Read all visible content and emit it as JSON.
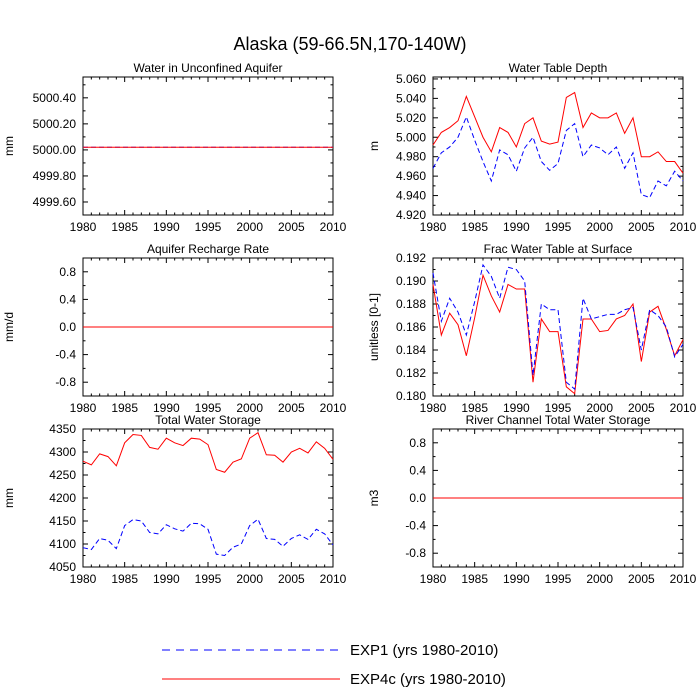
{
  "figure_title": "Alaska (59-66.5N,170-140W)",
  "colors": {
    "exp1": "#0000ff",
    "exp4c": "#ff0000",
    "axis": "#000000"
  },
  "legend": {
    "entries": [
      {
        "label": "EXP1 (yrs 1980-2010)",
        "series": "exp1"
      },
      {
        "label": "EXP4c (yrs 1980-2010)",
        "series": "exp4c"
      }
    ]
  },
  "chart_data": [
    {
      "type": "line",
      "title": "Water in Unconfined Aquifer",
      "ylabel": "mm",
      "xlim": [
        1980,
        2010
      ],
      "ylim": [
        4999.5,
        5000.56
      ],
      "x_ticks": [
        "1980",
        "1985",
        "1990",
        "1995",
        "2000",
        "2005",
        "2010"
      ],
      "y_ticks": [
        {
          "v": 4999.6,
          "label": "4999.60"
        },
        {
          "v": 4999.8,
          "label": "4999.80"
        },
        {
          "v": 5000.0,
          "label": "5000.00"
        },
        {
          "v": 5000.2,
          "label": "5000.20"
        },
        {
          "v": 5000.4,
          "label": "5000.40"
        }
      ],
      "series": [
        {
          "name": "EXP1",
          "key": "exp1",
          "values": [
            5000.02,
            5000.02
          ]
        },
        {
          "name": "EXP4c",
          "key": "exp4c",
          "values": [
            5000.02,
            5000.02
          ]
        }
      ],
      "x": [
        1980,
        2010
      ]
    },
    {
      "type": "line",
      "title": "Water Table Depth",
      "ylabel": "m",
      "xlim": [
        1980,
        2010
      ],
      "ylim": [
        4.92,
        5.062
      ],
      "x_ticks": [
        "1980",
        "1985",
        "1990",
        "1995",
        "2000",
        "2005",
        "2010"
      ],
      "y_ticks": [
        {
          "v": 4.92,
          "label": "4.920"
        },
        {
          "v": 4.94,
          "label": "4.940"
        },
        {
          "v": 4.96,
          "label": "4.960"
        },
        {
          "v": 4.98,
          "label": "4.980"
        },
        {
          "v": 5.0,
          "label": "5.000"
        },
        {
          "v": 5.02,
          "label": "5.020"
        },
        {
          "v": 5.04,
          "label": "5.040"
        },
        {
          "v": 5.06,
          "label": "5.060"
        }
      ],
      "x": [
        1980,
        1981,
        1982,
        1983,
        1984,
        1985,
        1986,
        1987,
        1988,
        1989,
        1990,
        1991,
        1992,
        1993,
        1994,
        1995,
        1996,
        1997,
        1998,
        1999,
        2000,
        2001,
        2002,
        2003,
        2004,
        2005,
        2006,
        2007,
        2008,
        2009,
        2010
      ],
      "series": [
        {
          "name": "EXP4c",
          "key": "exp4c",
          "values": [
            4.992,
            5.005,
            5.01,
            5.017,
            5.042,
            5.021,
            5.0,
            4.985,
            5.01,
            5.005,
            4.99,
            5.014,
            5.02,
            4.996,
            4.993,
            4.995,
            5.041,
            5.046,
            5.01,
            5.025,
            5.02,
            5.02,
            5.025,
            5.004,
            5.02,
            4.98,
            4.98,
            4.985,
            4.975,
            4.975,
            4.963
          ]
        },
        {
          "name": "EXP1",
          "key": "exp1",
          "values": [
            4.968,
            4.984,
            4.99,
            5.0,
            5.021,
            4.997,
            4.975,
            4.955,
            4.987,
            4.982,
            4.965,
            4.989,
            5.0,
            4.975,
            4.966,
            4.973,
            5.007,
            5.014,
            4.98,
            4.992,
            4.989,
            4.982,
            4.99,
            4.968,
            4.984,
            4.941,
            4.938,
            4.955,
            4.95,
            4.965,
            4.955
          ]
        }
      ]
    },
    {
      "type": "line",
      "title": "Aquifer Recharge Rate",
      "ylabel": "mm/d",
      "xlim": [
        1980,
        2010
      ],
      "ylim": [
        -1.0,
        1.0
      ],
      "x_ticks": [
        "1980",
        "1985",
        "1990",
        "1995",
        "2000",
        "2005",
        "2010"
      ],
      "y_ticks": [
        {
          "v": -0.8,
          "label": "-0.8"
        },
        {
          "v": -0.4,
          "label": "-0.4"
        },
        {
          "v": 0.0,
          "label": "0.0"
        },
        {
          "v": 0.4,
          "label": "0.4"
        },
        {
          "v": 0.8,
          "label": "0.8"
        }
      ],
      "series": [
        {
          "name": "EXP1",
          "key": "exp1",
          "values": [
            0.0,
            0.0
          ]
        },
        {
          "name": "EXP4c",
          "key": "exp4c",
          "values": [
            0.0,
            0.0
          ]
        }
      ],
      "x": [
        1980,
        2010
      ]
    },
    {
      "type": "line",
      "title": "Frac Water Table at Surface",
      "ylabel": "unitless [0-1]",
      "xlim": [
        1980,
        2010
      ],
      "ylim": [
        0.18,
        0.192
      ],
      "x_ticks": [
        "1980",
        "1985",
        "1990",
        "1995",
        "2000",
        "2005",
        "2010"
      ],
      "y_ticks": [
        {
          "v": 0.18,
          "label": "0.180"
        },
        {
          "v": 0.182,
          "label": "0.182"
        },
        {
          "v": 0.184,
          "label": "0.184"
        },
        {
          "v": 0.186,
          "label": "0.186"
        },
        {
          "v": 0.188,
          "label": "0.188"
        },
        {
          "v": 0.19,
          "label": "0.190"
        },
        {
          "v": 0.192,
          "label": "0.192"
        }
      ],
      "x": [
        1980,
        1981,
        1982,
        1983,
        1984,
        1985,
        1986,
        1987,
        1988,
        1989,
        1990,
        1991,
        1992,
        1993,
        1994,
        1995,
        1996,
        1997,
        1998,
        1999,
        2000,
        2001,
        2002,
        2003,
        2004,
        2005,
        2006,
        2007,
        2008,
        2009,
        2010
      ],
      "series": [
        {
          "name": "EXP4c",
          "key": "exp4c",
          "values": [
            0.1897,
            0.1853,
            0.1872,
            0.1862,
            0.1835,
            0.1868,
            0.1905,
            0.1887,
            0.1873,
            0.1897,
            0.1893,
            0.1893,
            0.1812,
            0.1867,
            0.1856,
            0.1856,
            0.1808,
            0.1802,
            0.1867,
            0.1867,
            0.1856,
            0.1857,
            0.1867,
            0.187,
            0.188,
            0.183,
            0.1873,
            0.1878,
            0.1858,
            0.1835,
            0.1849
          ]
        },
        {
          "name": "EXP1",
          "key": "exp1",
          "values": [
            0.1907,
            0.1865,
            0.1885,
            0.1873,
            0.1853,
            0.1882,
            0.1914,
            0.1904,
            0.1885,
            0.1912,
            0.191,
            0.19,
            0.1818,
            0.188,
            0.1875,
            0.1875,
            0.1812,
            0.1806,
            0.1885,
            0.1867,
            0.1869,
            0.1871,
            0.1871,
            0.1875,
            0.1877,
            0.184,
            0.1875,
            0.187,
            0.186,
            0.1834,
            0.1845
          ]
        }
      ]
    },
    {
      "type": "line",
      "title": "Total Water Storage",
      "ylabel": "mm",
      "xlim": [
        1980,
        2010
      ],
      "ylim": [
        4050,
        4350
      ],
      "x_ticks": [
        "1980",
        "1985",
        "1990",
        "1995",
        "2000",
        "2005",
        "2010"
      ],
      "y_ticks": [
        {
          "v": 4050,
          "label": "4050"
        },
        {
          "v": 4100,
          "label": "4100"
        },
        {
          "v": 4150,
          "label": "4150"
        },
        {
          "v": 4200,
          "label": "4200"
        },
        {
          "v": 4250,
          "label": "4250"
        },
        {
          "v": 4300,
          "label": "4300"
        },
        {
          "v": 4350,
          "label": "4350"
        }
      ],
      "x": [
        1980,
        1981,
        1982,
        1983,
        1984,
        1985,
        1986,
        1987,
        1988,
        1989,
        1990,
        1991,
        1992,
        1993,
        1994,
        1995,
        1996,
        1997,
        1998,
        1999,
        2000,
        2001,
        2002,
        2003,
        2004,
        2005,
        2006,
        2007,
        2008,
        2009,
        2010
      ],
      "series": [
        {
          "name": "EXP4c",
          "key": "exp4c",
          "values": [
            4280,
            4272,
            4296,
            4290,
            4270,
            4320,
            4338,
            4336,
            4310,
            4306,
            4330,
            4320,
            4314,
            4330,
            4328,
            4316,
            4262,
            4256,
            4278,
            4285,
            4330,
            4342,
            4294,
            4293,
            4278,
            4300,
            4308,
            4298,
            4322,
            4308,
            4284
          ]
        },
        {
          "name": "EXP1",
          "key": "exp1",
          "values": [
            4092,
            4088,
            4112,
            4108,
            4090,
            4140,
            4153,
            4150,
            4125,
            4122,
            4142,
            4133,
            4128,
            4145,
            4144,
            4132,
            4078,
            4075,
            4093,
            4100,
            4140,
            4154,
            4112,
            4110,
            4095,
            4112,
            4120,
            4110,
            4132,
            4122,
            4098
          ]
        }
      ]
    },
    {
      "type": "line",
      "title": "River Channel Total Water Storage",
      "ylabel": "m3",
      "xlim": [
        1980,
        2010
      ],
      "ylim": [
        -1.0,
        1.0
      ],
      "x_ticks": [
        "1980",
        "1985",
        "1990",
        "1995",
        "2000",
        "2005",
        "2010"
      ],
      "y_ticks": [
        {
          "v": -0.8,
          "label": "-0.8"
        },
        {
          "v": -0.4,
          "label": "-0.4"
        },
        {
          "v": 0.0,
          "label": "0.0"
        },
        {
          "v": 0.4,
          "label": "0.4"
        },
        {
          "v": 0.8,
          "label": "0.8"
        }
      ],
      "series": [
        {
          "name": "EXP1",
          "key": "exp1",
          "values": [
            0.0,
            0.0
          ]
        },
        {
          "name": "EXP4c",
          "key": "exp4c",
          "values": [
            0.0,
            0.0
          ]
        }
      ],
      "x": [
        1980,
        2010
      ]
    }
  ]
}
